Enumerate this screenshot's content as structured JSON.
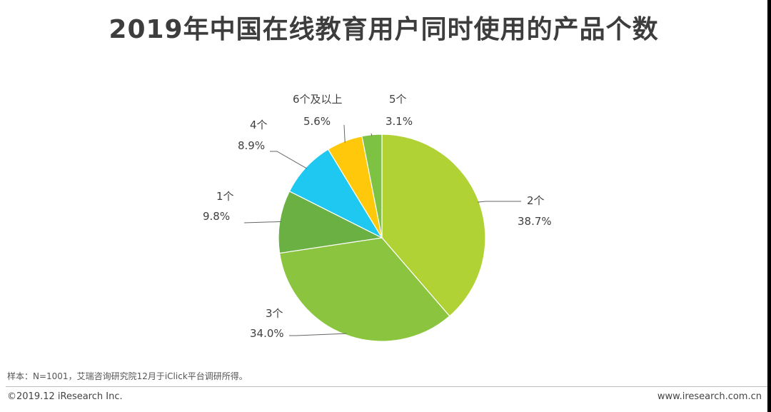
{
  "title": "2019年中国在线教育用户同时使用的产品个数",
  "chart_data": {
    "type": "pie",
    "title": "2019年中国在线教育用户同时使用的产品个数",
    "slices": [
      {
        "label": "2个",
        "value": 38.7,
        "value_label": "38.7%",
        "color": "#b1d235"
      },
      {
        "label": "3个",
        "value": 34.0,
        "value_label": "34.0%",
        "color": "#8bc43f"
      },
      {
        "label": "1个",
        "value": 9.8,
        "value_label": "9.8%",
        "color": "#6ab042"
      },
      {
        "label": "4个",
        "value": 8.9,
        "value_label": "8.9%",
        "color": "#1ec8f0"
      },
      {
        "label": "6个及以上",
        "value": 5.6,
        "value_label": "5.6%",
        "color": "#ffc80a"
      },
      {
        "label": "5个",
        "value": 3.1,
        "value_label": "3.1%",
        "color": "#7dc242"
      }
    ],
    "legend": "none"
  },
  "footer": {
    "note": "样本：N=1001，艾瑞咨询研究院12月于iClick平台调研所得。",
    "copyright": "©2019.12 iResearch Inc.",
    "site": "www.iresearch.com.cn"
  }
}
